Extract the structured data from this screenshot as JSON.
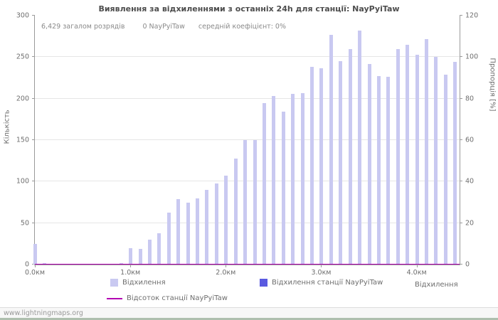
{
  "title": "Виявлення за відхиленнями з останніх 24h для станції: NayPyiTaw",
  "stats": {
    "total_label": "6,429 загалом розрядів",
    "station_label": "0 NayPyiTaw",
    "avg_label": "середній коефіцієнт: 0%"
  },
  "axes": {
    "y_left_label": "Кількість",
    "y_right_label": "Пропорція [%]",
    "x_label": "Відхилення",
    "y_left_ticks": [
      0,
      50,
      100,
      150,
      200,
      250,
      300
    ],
    "y_right_ticks": [
      0,
      20,
      40,
      60,
      80,
      100,
      120
    ],
    "x_ticks": [
      "0.0км",
      "1.0км",
      "2.0км",
      "3.0км",
      "4.0км"
    ]
  },
  "legend": {
    "items": [
      {
        "label": "Відхилення",
        "color": "#c9c9f1",
        "type": "bar"
      },
      {
        "label": "Відхилення станції NayPyiTaw",
        "color": "#5a5ae0",
        "type": "bar"
      },
      {
        "label": "Відсоток станції NayPyiTaw",
        "color": "#b300b3",
        "type": "line"
      }
    ]
  },
  "footer": {
    "link": "www.lightningmaps.org"
  },
  "chart_data": {
    "type": "bar",
    "title": "Виявлення за відхиленнями з останніх 24h для станції: NayPyiTaw",
    "xlabel": "Відхилення",
    "ylabel_left": "Кількість",
    "ylabel_right": "Пропорція [%]",
    "ylim_left": [
      0,
      300
    ],
    "ylim_right": [
      0,
      120
    ],
    "x_max_km": 4.45,
    "x_unit": "км",
    "grid": true,
    "legend_position": "bottom",
    "x": [
      0.0,
      0.1,
      0.2,
      0.3,
      0.4,
      0.5,
      0.6,
      0.7,
      0.8,
      0.9,
      1.0,
      1.1,
      1.2,
      1.3,
      1.4,
      1.5,
      1.6,
      1.7,
      1.8,
      1.9,
      2.0,
      2.1,
      2.2,
      2.3,
      2.4,
      2.5,
      2.6,
      2.7,
      2.8,
      2.9,
      3.0,
      3.1,
      3.2,
      3.3,
      3.4,
      3.5,
      3.6,
      3.7,
      3.8,
      3.9,
      4.0,
      4.1,
      4.2,
      4.3,
      4.4
    ],
    "series": [
      {
        "name": "Відхилення",
        "axis": "left",
        "values": [
          25,
          2,
          1,
          1,
          1,
          1,
          1,
          1,
          1,
          2,
          20,
          19,
          30,
          38,
          63,
          79,
          75,
          80,
          90,
          98,
          107,
          128,
          150,
          150,
          195,
          203,
          184,
          206,
          207,
          238,
          237,
          277,
          245,
          260,
          282,
          242,
          227,
          226,
          260,
          265,
          253,
          272,
          250,
          229,
          244
        ]
      },
      {
        "name": "Відхилення станції NayPyiTaw",
        "axis": "left",
        "values": [
          0,
          0,
          0,
          0,
          0,
          0,
          0,
          0,
          0,
          0,
          0,
          0,
          0,
          0,
          0,
          0,
          0,
          0,
          0,
          0,
          0,
          0,
          0,
          0,
          0,
          0,
          0,
          0,
          0,
          0,
          0,
          0,
          0,
          0,
          0,
          0,
          0,
          0,
          0,
          0,
          0,
          0,
          0,
          0,
          0
        ]
      },
      {
        "name": "Відсоток станції NayPyiTaw",
        "axis": "right",
        "type": "line",
        "values": [
          0,
          0,
          0,
          0,
          0,
          0,
          0,
          0,
          0,
          0,
          0,
          0,
          0,
          0,
          0,
          0,
          0,
          0,
          0,
          0,
          0,
          0,
          0,
          0,
          0,
          0,
          0,
          0,
          0,
          0,
          0,
          0,
          0,
          0,
          0,
          0,
          0,
          0,
          0,
          0,
          0,
          0,
          0,
          0,
          0
        ]
      }
    ]
  }
}
